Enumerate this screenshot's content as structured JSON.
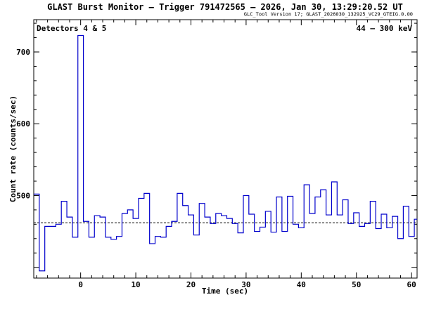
{
  "chart_data": {
    "type": "line",
    "title": "GLAST Burst Monitor  –  Trigger 791472565  –  2026, Jan 30, 13:29:20.52 UT",
    "subtitle": "GLC_Tool Version 17; GLAST_2026030_132925_VC29_GTEIG.0.00",
    "annotation_left": "Detectors 4 & 5",
    "annotation_right": "44 – 300 keV",
    "xlabel": "Time (sec)",
    "ylabel": "Count rate (counts/sec)",
    "xlim": [
      -8.5,
      61
    ],
    "ylim": [
      385,
      745
    ],
    "x_ticks": [
      0,
      10,
      20,
      30,
      40,
      50,
      60
    ],
    "y_ticks": [
      500,
      600,
      700
    ],
    "background_level": 462,
    "series_color": "#0000cc",
    "step_edges": [
      -8.5,
      -7.5,
      -6.5,
      -5.5,
      -4.5,
      -3.5,
      -2.5,
      -1.5,
      -0.5,
      0.5,
      1.5,
      2.5,
      3.5,
      4.5,
      5.5,
      6.5,
      7.5,
      8.5,
      9.5,
      10.5,
      11.5,
      12.5,
      13.5,
      14.5,
      15.5,
      16.5,
      17.5,
      18.5,
      19.5,
      20.5,
      21.5,
      22.5,
      23.5,
      24.5,
      25.5,
      26.5,
      27.5,
      28.5,
      29.5,
      30.5,
      31.5,
      32.5,
      33.5,
      34.5,
      35.5,
      36.5,
      37.5,
      38.5,
      39.5,
      40.5,
      41.5,
      42.5,
      43.5,
      44.5,
      45.5,
      46.5,
      47.5,
      48.5,
      49.5,
      50.5,
      51.5,
      52.5,
      53.5,
      54.5,
      55.5,
      56.5,
      57.5,
      58.5,
      59.5,
      60.5,
      61
    ],
    "values": [
      502,
      395,
      457,
      457,
      460,
      492,
      470,
      442,
      723,
      464,
      442,
      472,
      470,
      442,
      439,
      443,
      475,
      480,
      468,
      496,
      503,
      433,
      443,
      442,
      457,
      464,
      503,
      486,
      473,
      445,
      489,
      470,
      461,
      475,
      472,
      468,
      461,
      448,
      500,
      474,
      450,
      456,
      478,
      449,
      498,
      450,
      499,
      460,
      455,
      515,
      475,
      498,
      508,
      473,
      519,
      473,
      494,
      461,
      476,
      457,
      461,
      492,
      454,
      474,
      455,
      471,
      440,
      485,
      443,
      467,
      467
    ]
  }
}
